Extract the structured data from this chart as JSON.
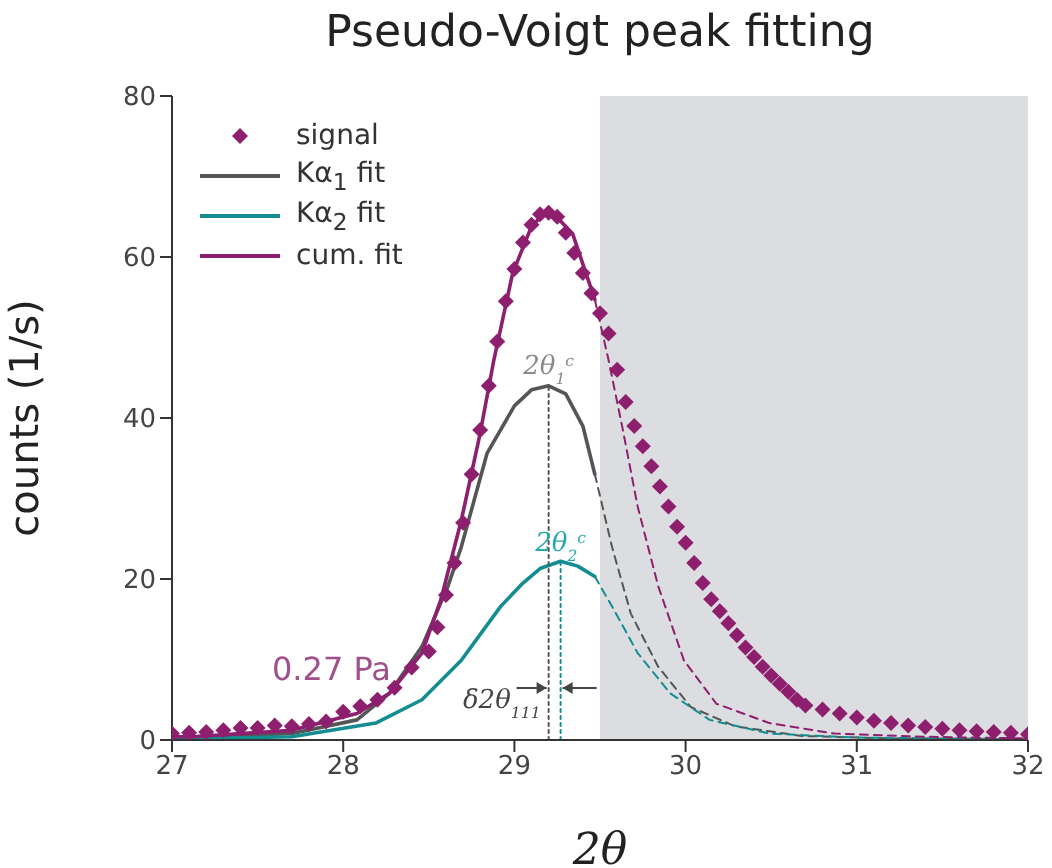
{
  "chart_data": {
    "type": "line",
    "title": "Pseudo-Voigt peak fitting",
    "xlabel": "2θ",
    "ylabel": "counts (1/s)",
    "xlim": [
      27,
      32
    ],
    "ylim": [
      0,
      80
    ],
    "xticks": [
      27,
      28,
      29,
      30,
      31,
      32
    ],
    "yticks": [
      0,
      20,
      40,
      60,
      80
    ],
    "grid": false,
    "legend": "top left",
    "bands": [
      {
        "axis": "x",
        "from": 29.5,
        "to": 32,
        "color": "#dcdde0"
      }
    ],
    "annotations": [
      "0.27 Pa",
      "2θ$_{1}$$^{c}$",
      "2θ$_{2}$$^{c}$",
      "δ2θ$_{111}$"
    ],
    "series": [
      {
        "name": "signal",
        "type": "scatter",
        "marker": "diamond",
        "color": "#8e1f6e",
        "x": [
          27.0,
          27.1,
          27.2,
          27.3,
          27.4,
          27.5,
          27.6,
          27.7,
          27.8,
          27.9,
          28.0,
          28.1,
          28.2,
          28.3,
          28.4,
          28.5,
          28.55,
          28.6,
          28.65,
          28.7,
          28.75,
          28.8,
          28.85,
          28.9,
          28.95,
          29.0,
          29.05,
          29.1,
          29.15,
          29.2,
          29.25,
          29.3,
          29.35,
          29.4,
          29.45,
          29.5,
          29.55,
          29.6,
          29.65,
          29.7,
          29.75,
          29.8,
          29.85,
          29.9,
          29.95,
          30.0,
          30.05,
          30.1,
          30.15,
          30.2,
          30.25,
          30.3,
          30.35,
          30.4,
          30.45,
          30.5,
          30.55,
          30.6,
          30.65,
          30.7,
          30.8,
          30.9,
          31.0,
          31.1,
          31.2,
          31.3,
          31.4,
          31.5,
          31.6,
          31.7,
          31.8,
          31.9,
          32.0
        ],
        "values": [
          0.8,
          0.9,
          1.0,
          1.2,
          1.5,
          1.5,
          1.8,
          1.7,
          2.0,
          2.3,
          3.5,
          4.2,
          5,
          6.5,
          9,
          11,
          14,
          18,
          22,
          27,
          33,
          38.5,
          44,
          49.5,
          54.5,
          58.5,
          61.8,
          64,
          65.3,
          65.5,
          65,
          63,
          60.5,
          58,
          55.5,
          53,
          50.5,
          46,
          42,
          39,
          36.5,
          34,
          31.5,
          29,
          26.5,
          24.5,
          22,
          19.5,
          17.5,
          16,
          14.5,
          13,
          11.5,
          10.3,
          9.1,
          8,
          7,
          6,
          5,
          4.3,
          3.8,
          3.3,
          2.8,
          2.4,
          2.1,
          1.8,
          1.6,
          1.4,
          1.2,
          1.1,
          1.0,
          0.9,
          0.7
        ]
      },
      {
        "name": "Kα$_{1}$ fit",
        "color": "#555555",
        "line_style": "solid",
        "marker": "none",
        "x": [
          27.0,
          27.7,
          28.08,
          28.27,
          28.46,
          28.61,
          28.69,
          28.84,
          29.0,
          29.1,
          29.2,
          29.3,
          29.4,
          29.47
        ],
        "values": [
          0.3,
          0.8,
          2.5,
          5.8,
          11.6,
          19,
          24,
          35.6,
          41.5,
          43.5,
          44,
          43,
          39,
          33
        ]
      },
      {
        "name": "Kα$_{2}$ fit",
        "color": "#138d90",
        "line_style": "solid",
        "marker": "none",
        "x": [
          27.0,
          27.7,
          28.19,
          28.46,
          28.69,
          28.92,
          29.05,
          29.15,
          29.27,
          29.37,
          29.47
        ],
        "values": [
          0.1,
          0.4,
          2.1,
          5,
          9.9,
          16.6,
          19.5,
          21.3,
          22.2,
          21.6,
          20.3
        ]
      },
      {
        "name": "cum. fit",
        "color": "#8e1f6e",
        "line_style": "solid",
        "marker": "none",
        "x": [
          27.0,
          27.12,
          27.7,
          28.08,
          28.27,
          28.46,
          28.57,
          28.69,
          28.8,
          28.88,
          28.99,
          29.1,
          29.19,
          29.21,
          29.34,
          29.47
        ],
        "values": [
          0.4,
          0.4,
          1.2,
          3.3,
          5.8,
          10.8,
          17.4,
          27.3,
          38.1,
          47.2,
          58,
          63.8,
          65.8,
          65.8,
          62.9,
          54.7
        ]
      },
      {
        "type": "line",
        "color": "#555555",
        "line_style": "dashed",
        "marker": "none",
        "x": [
          29.47,
          29.57,
          29.68,
          29.84,
          30.03,
          30.29,
          30.68,
          31.2,
          32.0
        ],
        "values": [
          33,
          24,
          15.7,
          9.1,
          4.1,
          1.7,
          0.5,
          0.2,
          0.1
        ]
      },
      {
        "type": "line",
        "color": "#138d90",
        "line_style": "dashed",
        "marker": "none",
        "x": [
          29.47,
          29.57,
          29.72,
          29.91,
          30.14,
          30.49,
          31.0,
          32.0
        ],
        "values": [
          20.3,
          16.6,
          10.8,
          5.8,
          2.5,
          0.8,
          0.3,
          0.1
        ]
      },
      {
        "type": "line",
        "color": "#8e1f6e",
        "line_style": "dashed",
        "marker": "none",
        "x": [
          29.47,
          29.55,
          29.63,
          29.72,
          29.84,
          29.99,
          30.18,
          30.49,
          30.87,
          31.4,
          32.0
        ],
        "values": [
          54.7,
          47.2,
          38.9,
          29,
          19.1,
          9.9,
          4.5,
          2.1,
          0.8,
          0.4,
          0.2
        ]
      },
      {
        "type": "line",
        "color": "#555555",
        "line_style": "dotted",
        "marker": "none",
        "x": [
          29.2,
          29.2
        ],
        "values": [
          0,
          44
        ]
      },
      {
        "type": "line",
        "color": "#138d90",
        "line_style": "dotted",
        "marker": "none",
        "x": [
          29.27,
          29.27
        ],
        "values": [
          0,
          22
        ]
      }
    ]
  }
}
